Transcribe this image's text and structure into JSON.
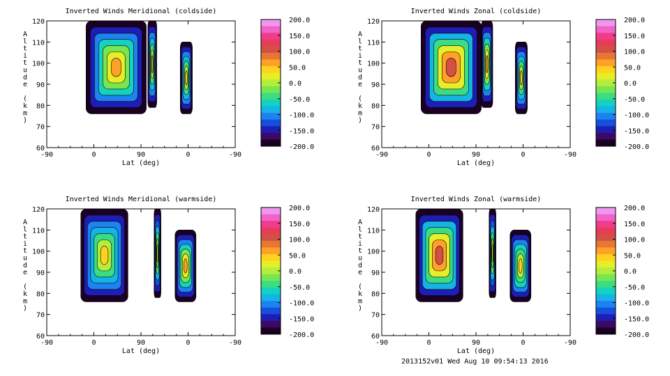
{
  "colors": {
    "colorbar": [
      "#1a0022",
      "#3c0a64",
      "#1e1eb4",
      "#1450dc",
      "#1e82f0",
      "#14b4e6",
      "#14d2be",
      "#3cdc82",
      "#78e650",
      "#b4ee3c",
      "#e6ee28",
      "#ffd21e",
      "#ffa028",
      "#e67832",
      "#d25046",
      "#e63c5a",
      "#f03c8c",
      "#f064c8",
      "#f096f0"
    ],
    "ink": "#000000"
  },
  "footer": "2013152v01 Wed Aug 10 09:54:13 2016",
  "chart_data": [
    {
      "type": "heatmap",
      "title": "Inverted Winds Meridional (coldside)",
      "xlabel": "Lat (deg)",
      "ylabel": "Altitude (km)",
      "x_ticks": [
        "-90",
        "0",
        "90",
        "0",
        "-90"
      ],
      "y_ticks": [
        "60",
        "70",
        "80",
        "90",
        "100",
        "110",
        "120"
      ],
      "ylim": [
        60,
        120
      ],
      "colorbar_ticks": [
        "200.0",
        "150.0",
        "100.0",
        "50.0",
        "0.0",
        "-50.0",
        "-100.0",
        "-150.0",
        "-200.0"
      ],
      "clim": [
        -200,
        200
      ],
      "blobs": [
        {
          "x": [
            -15,
            100
          ],
          "y": [
            76,
            120
          ],
          "peak": 60
        },
        {
          "x": [
            103,
            120
          ],
          "y": [
            79,
            120
          ],
          "peak": 40
        },
        {
          "x": [
            165,
            188
          ],
          "y": [
            76,
            110
          ],
          "peak": 40
        }
      ]
    },
    {
      "type": "heatmap",
      "title": "Inverted Winds Zonal (coldside)",
      "xlabel": "Lat (deg)",
      "ylabel": "Altitude (km)",
      "x_ticks": [
        "-90",
        "0",
        "90",
        "0",
        "-90"
      ],
      "y_ticks": [
        "60",
        "70",
        "80",
        "90",
        "100",
        "110",
        "120"
      ],
      "ylim": [
        60,
        120
      ],
      "colorbar_ticks": [
        "200.0",
        "150.0",
        "100.0",
        "50.0",
        "0.0",
        "-50.0",
        "-100.0",
        "-150.0",
        "-200.0"
      ],
      "clim": [
        -200,
        200
      ],
      "blobs": [
        {
          "x": [
            -15,
            100
          ],
          "y": [
            76,
            120
          ],
          "peak": 120
        },
        {
          "x": [
            100,
            122
          ],
          "y": [
            79,
            120
          ],
          "peak": 60
        },
        {
          "x": [
            165,
            188
          ],
          "y": [
            76,
            110
          ],
          "peak": 40
        }
      ]
    },
    {
      "type": "heatmap",
      "title": "Inverted Winds Meridional (warmside)",
      "xlabel": "Lat (deg)",
      "ylabel": "Altitude (km)",
      "x_ticks": [
        "-90",
        "0",
        "90",
        "0",
        "-90"
      ],
      "y_ticks": [
        "60",
        "70",
        "80",
        "90",
        "100",
        "110",
        "120"
      ],
      "ylim": [
        60,
        120
      ],
      "colorbar_ticks": [
        "200.0",
        "150.0",
        "100.0",
        "50.0",
        "0.0",
        "-50.0",
        "-100.0",
        "-150.0",
        "-200.0"
      ],
      "clim": [
        -200,
        200
      ],
      "blobs": [
        {
          "x": [
            -25,
            65
          ],
          "y": [
            76,
            120
          ],
          "peak": 40
        },
        {
          "x": [
            115,
            128
          ],
          "y": [
            78,
            120
          ],
          "peak": 20
        },
        {
          "x": [
            155,
            195
          ],
          "y": [
            76,
            110
          ],
          "peak": 60
        }
      ]
    },
    {
      "type": "heatmap",
      "title": "Inverted Winds Zonal (warmside)",
      "xlabel": "Lat (deg)",
      "ylabel": "Altitude (km)",
      "x_ticks": [
        "-90",
        "0",
        "90",
        "0",
        "-90"
      ],
      "y_ticks": [
        "60",
        "70",
        "80",
        "90",
        "100",
        "110",
        "120"
      ],
      "ylim": [
        60,
        120
      ],
      "colorbar_ticks": [
        "200.0",
        "150.0",
        "100.0",
        "50.0",
        "0.0",
        "-50.0",
        "-100.0",
        "-150.0",
        "-200.0"
      ],
      "clim": [
        -200,
        200
      ],
      "blobs": [
        {
          "x": [
            -25,
            65
          ],
          "y": [
            76,
            120
          ],
          "peak": 120
        },
        {
          "x": [
            115,
            128
          ],
          "y": [
            78,
            120
          ],
          "peak": 20
        },
        {
          "x": [
            155,
            195
          ],
          "y": [
            76,
            110
          ],
          "peak": 50
        }
      ]
    }
  ]
}
